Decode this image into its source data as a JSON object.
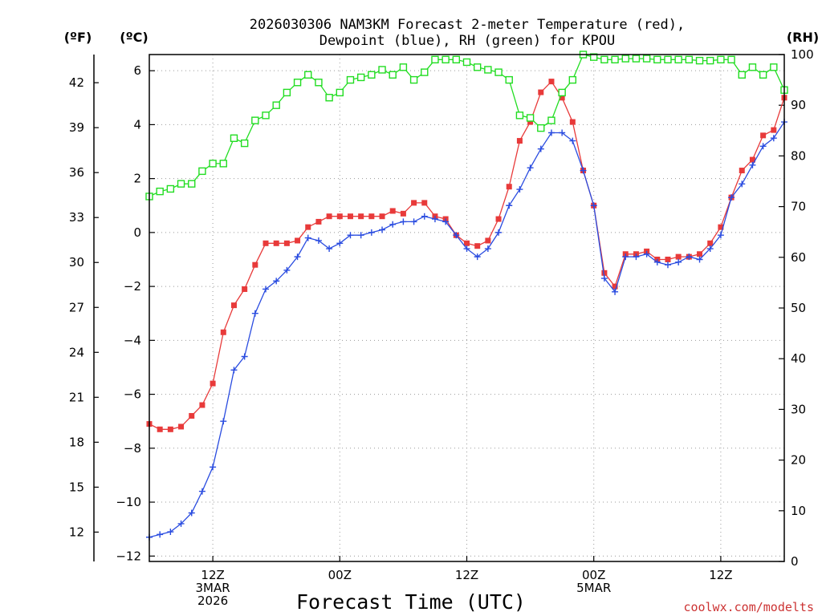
{
  "chart_data": {
    "type": "line",
    "title_line1": "2026030306 NAM3KM Forecast 2-meter Temperature (red),",
    "title_line2": "Dewpoint (blue), RH (green) for KPOU",
    "xlabel": "Forecast Time (UTC)",
    "credit": "coolwx.com/modelts",
    "unit_f": "(ºF)",
    "unit_c": "(ºC)",
    "unit_rh": "(RH)",
    "x_hour_range": [
      6,
      66
    ],
    "celsius_range": [
      -12.2,
      6.6
    ],
    "rh_range": [
      0,
      100
    ],
    "fahrenheit_ticks": [
      "12",
      "15",
      "18",
      "21",
      "24",
      "27",
      "30",
      "33",
      "36",
      "39",
      "42"
    ],
    "celsius_ticks": [
      "−12",
      "−10",
      "−8",
      "−6",
      "−4",
      "−2",
      "0",
      "2",
      "4",
      "6"
    ],
    "rh_ticks": [
      "0",
      "10",
      "20",
      "30",
      "40",
      "50",
      "60",
      "70",
      "80",
      "90",
      "100"
    ],
    "x_ticks": [
      {
        "hour": 12,
        "lines": [
          "12Z",
          "3MAR",
          "2026"
        ]
      },
      {
        "hour": 24,
        "lines": [
          "00Z"
        ]
      },
      {
        "hour": 36,
        "lines": [
          "12Z"
        ]
      },
      {
        "hour": 48,
        "lines": [
          "00Z",
          "5MAR"
        ]
      },
      {
        "hour": 60,
        "lines": [
          "12Z"
        ]
      }
    ],
    "x_hours": [
      6,
      7,
      8,
      9,
      10,
      11,
      12,
      13,
      14,
      15,
      16,
      17,
      18,
      19,
      20,
      21,
      22,
      23,
      24,
      25,
      26,
      27,
      28,
      29,
      30,
      31,
      32,
      33,
      34,
      35,
      36,
      37,
      38,
      39,
      40,
      41,
      42,
      43,
      44,
      45,
      46,
      47,
      48,
      49,
      50,
      51,
      52,
      53,
      54,
      55,
      56,
      57,
      58,
      59,
      60,
      61,
      62,
      63,
      64,
      65,
      66
    ],
    "series": [
      {
        "name": "2-meter Temperature (°C)",
        "color": "#e83a3a",
        "axis": "celsius",
        "marker": "filled-square",
        "values": [
          -7.1,
          -7.3,
          -7.3,
          -7.2,
          -6.8,
          -6.4,
          -5.6,
          -3.7,
          -2.7,
          -2.1,
          -1.2,
          -0.4,
          -0.4,
          -0.4,
          -0.3,
          0.2,
          0.4,
          0.6,
          0.6,
          0.6,
          0.6,
          0.6,
          0.6,
          0.8,
          0.7,
          1.1,
          1.1,
          0.6,
          0.5,
          -0.1,
          -0.4,
          -0.5,
          -0.3,
          0.5,
          1.7,
          3.4,
          4.1,
          5.2,
          5.6,
          5.0,
          4.1,
          2.3,
          1.0,
          -1.5,
          -2.0,
          -0.8,
          -0.8,
          -0.7,
          -1.0,
          -1.0,
          -0.9,
          -0.9,
          -0.8,
          -0.4,
          0.2,
          1.3,
          2.3,
          2.7,
          3.6,
          3.8,
          5.0
        ]
      },
      {
        "name": "Dewpoint (°C)",
        "color": "#2a4ce0",
        "axis": "celsius",
        "marker": "plus",
        "values": [
          -11.3,
          -11.2,
          -11.1,
          -10.8,
          -10.4,
          -9.6,
          -8.7,
          -7.0,
          -5.1,
          -4.6,
          -3.0,
          -2.1,
          -1.8,
          -1.4,
          -0.9,
          -0.2,
          -0.3,
          -0.6,
          -0.4,
          -0.1,
          -0.1,
          0.0,
          0.1,
          0.3,
          0.4,
          0.4,
          0.6,
          0.5,
          0.4,
          -0.1,
          -0.6,
          -0.9,
          -0.6,
          0.0,
          1.0,
          1.6,
          2.4,
          3.1,
          3.7,
          3.7,
          3.4,
          2.3,
          1.0,
          -1.7,
          -2.2,
          -0.9,
          -0.9,
          -0.8,
          -1.1,
          -1.2,
          -1.1,
          -0.9,
          -1.0,
          -0.6,
          -0.1,
          1.3,
          1.8,
          2.5,
          3.2,
          3.5,
          4.1
        ]
      },
      {
        "name": "Relative Humidity (%)",
        "color": "#22dd22",
        "axis": "rh",
        "marker": "open-square",
        "values": [
          72,
          73,
          73.5,
          74.5,
          74.5,
          77,
          78.5,
          78.5,
          83.5,
          82.5,
          87,
          88,
          90,
          92.5,
          94.5,
          96,
          94.5,
          91.5,
          92.5,
          95,
          95.5,
          96,
          97,
          96,
          97.5,
          95,
          96.5,
          99,
          99,
          99,
          98.5,
          97.5,
          97,
          96.5,
          95,
          88,
          87.5,
          85.5,
          87,
          92.5,
          95,
          100,
          99.5,
          99,
          99,
          99.2,
          99.2,
          99.2,
          99,
          99,
          99,
          99,
          98.8,
          98.8,
          99,
          99,
          96,
          97.5,
          96,
          97.5,
          93
        ]
      }
    ]
  }
}
